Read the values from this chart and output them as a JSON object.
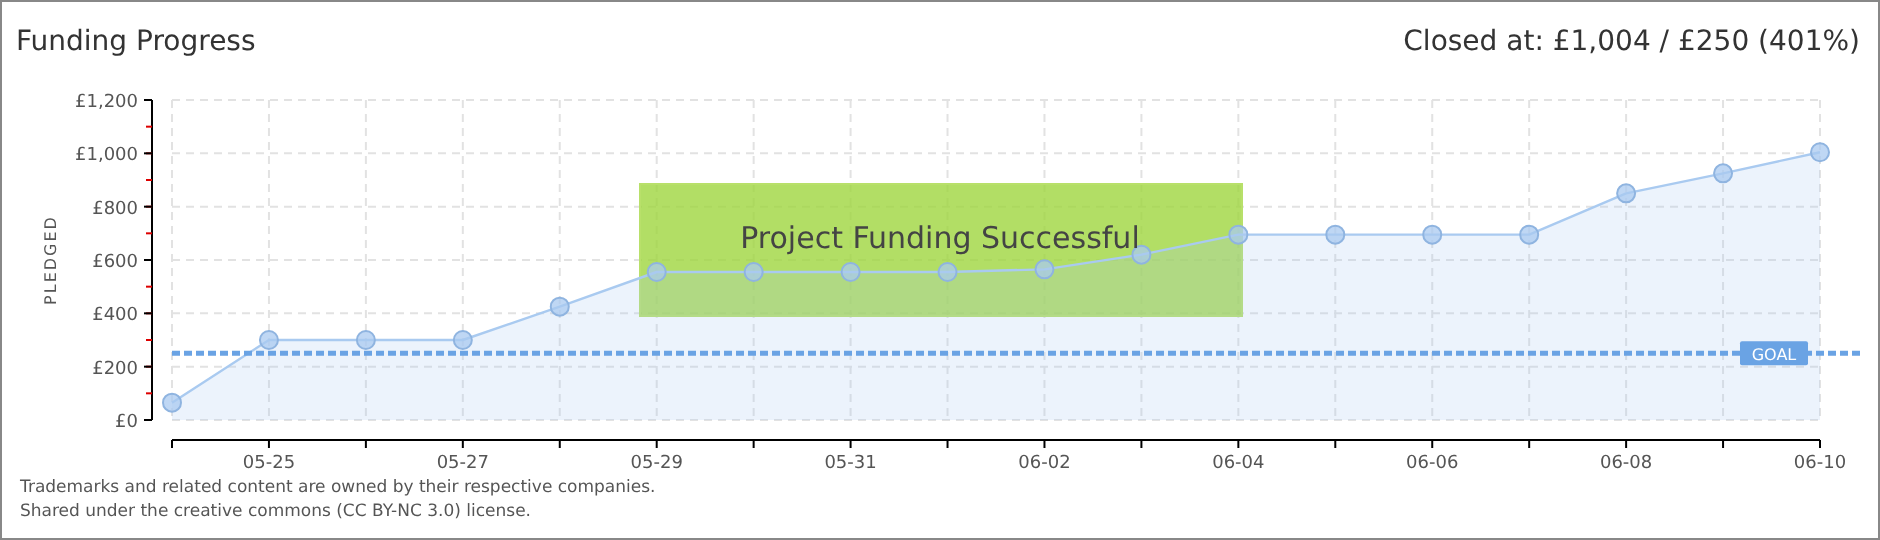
{
  "chart_data": {
    "type": "area",
    "title": "Funding Progress",
    "subtitle": "Closed at: £1,004 / £250 (401%)",
    "ylabel": "PLEDGED",
    "categories": [
      null,
      "05-25",
      null,
      "05-27",
      null,
      "05-29",
      null,
      "05-31",
      null,
      "06-02",
      null,
      "06-04",
      null,
      "06-06",
      null,
      "06-08",
      null,
      "06-10"
    ],
    "series": [
      {
        "color": "#a9caf0",
        "values": [
          65,
          300,
          300,
          300,
          425,
          555,
          555,
          555,
          555,
          565,
          620,
          695,
          695,
          695,
          695,
          850,
          925,
          1004
        ]
      }
    ],
    "ylim": [
      0,
      1200
    ],
    "yticks": [
      {
        "value": 0,
        "label": "£0"
      },
      {
        "value": 200,
        "label": "£200"
      },
      {
        "value": 400,
        "label": "£400"
      },
      {
        "value": 600,
        "label": "£600"
      },
      {
        "value": 800,
        "label": "£800"
      },
      {
        "value": 1000,
        "label": "£1,000"
      },
      {
        "value": 1200,
        "label": "£1,200"
      }
    ],
    "grid": true,
    "marker": "circle",
    "ref_lines": [
      {
        "axis": "y",
        "value": 250,
        "label": "GOAL",
        "color": "#6aa3e4",
        "line_style": "dashed"
      }
    ],
    "annotations": [
      "Project Funding Successful",
      "Trademarks and related content are owned by their respective companies.",
      "Shared under the creative commons (CC BY-NC 3.0) license."
    ]
  }
}
